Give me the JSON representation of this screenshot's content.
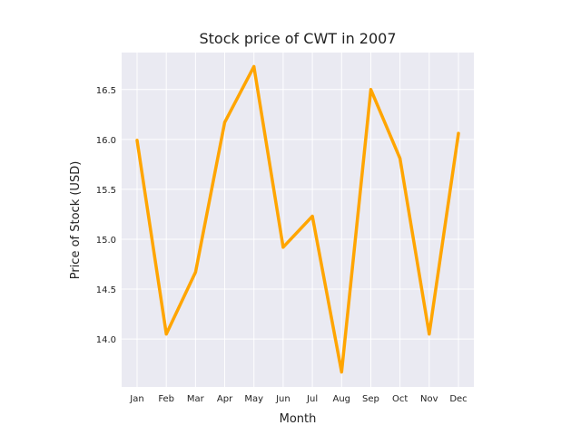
{
  "chart_data": {
    "type": "line",
    "title": "Stock price of CWT in 2007",
    "xlabel": "Month",
    "ylabel": "Price of Stock (USD)",
    "categories": [
      "Jan",
      "Feb",
      "Mar",
      "Apr",
      "May",
      "Jun",
      "Jul",
      "Aug",
      "Sep",
      "Oct",
      "Nov",
      "Dec"
    ],
    "series": [
      {
        "values": [
          15.99,
          14.05,
          14.67,
          16.17,
          16.73,
          14.92,
          15.23,
          13.67,
          16.5,
          15.81,
          14.05,
          16.06
        ]
      }
    ],
    "ylim": [
      13.52,
      16.87
    ],
    "yticks": [
      14.0,
      14.5,
      15.0,
      15.5,
      16.0,
      16.5
    ],
    "ytick_labels": [
      "14.0",
      "14.5",
      "15.0",
      "15.5",
      "16.0",
      "16.5"
    ],
    "grid": true,
    "line_color": "#FFA500",
    "background_color": "#EAEAF2",
    "grid_color": "#FFFFFF"
  }
}
